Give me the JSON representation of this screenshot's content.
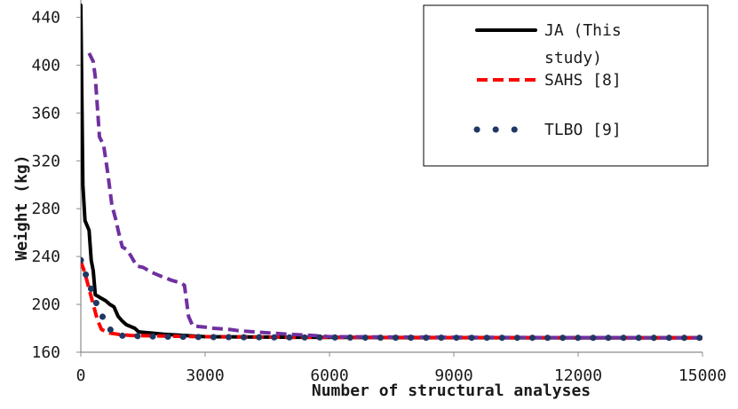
{
  "chart_data": {
    "type": "line",
    "title": "",
    "xlabel": "Number of structural analyses",
    "ylabel": "Weight (kg)",
    "xlim": [
      0,
      15000
    ],
    "ylim": [
      160,
      450
    ],
    "xticks": [
      0,
      3000,
      6000,
      9000,
      12000,
      15000
    ],
    "yticks": [
      160,
      200,
      240,
      280,
      320,
      360,
      400,
      440
    ],
    "grid": false,
    "legend_position": "top-right",
    "legend_lines": [
      [
        "JA (This",
        "study)"
      ],
      [
        "SAHS [8]"
      ],
      [
        "TLBO [9]"
      ]
    ],
    "series": [
      {
        "name": "JA (This study)",
        "color": "#000000",
        "style": "solid",
        "x": [
          0,
          50,
          100,
          200,
          250,
          300,
          350,
          400,
          450,
          600,
          700,
          800,
          900,
          1000,
          1100,
          1300,
          1400,
          1700,
          2000,
          3000,
          5000,
          8000,
          12000,
          15000
        ],
        "y": [
          450,
          300,
          270,
          262,
          237,
          228,
          208,
          207,
          206,
          203,
          200,
          198,
          190,
          186,
          183,
          180,
          177,
          176,
          175,
          173,
          172.5,
          172.2,
          172.1,
          172.0
        ]
      },
      {
        "name": "SAHS [8]",
        "color": "#ff0000",
        "style": "dashed",
        "x": [
          0,
          100,
          200,
          300,
          400,
          500,
          700,
          900,
          1200,
          2000,
          3000,
          5000,
          8000,
          12000,
          15000
        ],
        "y": [
          236,
          226,
          213,
          200,
          187,
          179,
          176,
          175,
          174,
          173.5,
          173,
          172.5,
          172.3,
          172.1,
          172.0
        ]
      },
      {
        "name": "TLBO [9]",
        "color": "#1f3864",
        "style": "dotted",
        "x": [
          0,
          150,
          300,
          450,
          800,
          1300,
          1700,
          2100,
          2600,
          3000,
          3400,
          3900,
          4300,
          4700,
          5200,
          5600,
          6000,
          7000,
          8000,
          9000,
          10000,
          11000,
          12000,
          13000,
          14000,
          15000
        ],
        "y": [
          237,
          222,
          208,
          194,
          174,
          173.5,
          173.2,
          173,
          172.8,
          172.7,
          172.6,
          172.5,
          172.5,
          172.4,
          172.4,
          172.3,
          172.3,
          172.2,
          172.2,
          172.1,
          172.1,
          172.1,
          172.0,
          172.0,
          172.0,
          172.0
        ]
      },
      {
        "name": "",
        "color": "#7030a0",
        "style": "dashed",
        "x": [
          200,
          300,
          350,
          450,
          550,
          650,
          750,
          850,
          900,
          1000,
          1100,
          1200,
          1300,
          1350,
          1500,
          1700,
          1900,
          2200,
          2400,
          2500,
          2600,
          2700,
          3000,
          3200,
          3600,
          3800,
          4200,
          4600,
          5000,
          5600,
          6000,
          7000,
          8000,
          9000,
          10000,
          12000,
          15000
        ],
        "y": [
          410,
          403,
          390,
          340,
          333,
          310,
          283,
          270,
          262,
          248,
          246,
          241,
          235,
          232,
          231,
          227,
          224,
          220,
          218,
          216,
          190,
          182,
          181,
          180,
          179,
          178,
          177,
          176,
          175,
          174,
          173,
          172.8,
          172.6,
          172.5,
          172.4,
          172.2,
          172.0
        ]
      }
    ]
  }
}
